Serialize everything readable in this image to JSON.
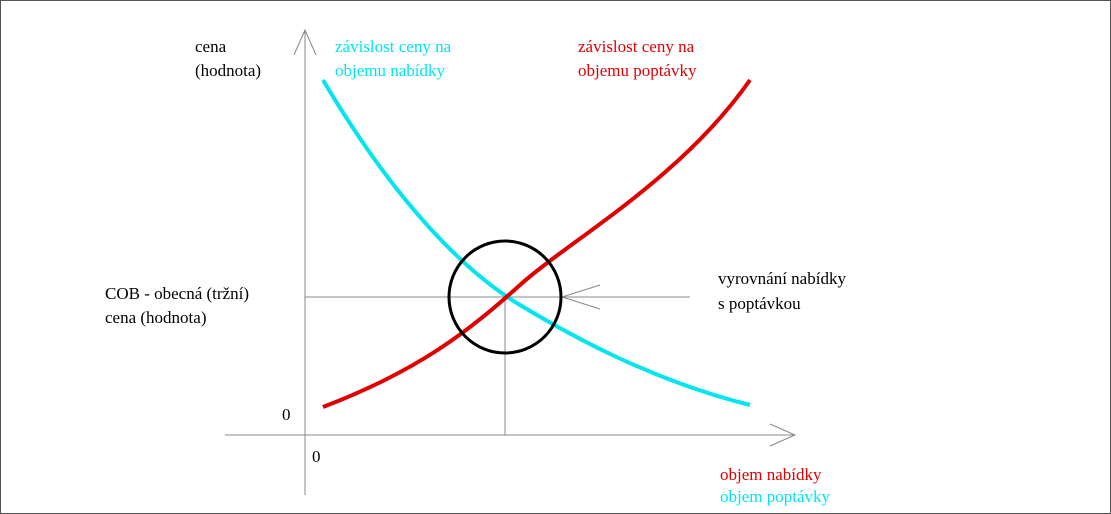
{
  "y_axis_label": [
    "cena",
    "(hodnota)"
  ],
  "supply_curve_label": [
    "závislost ceny na",
    "objemu nabídky"
  ],
  "demand_curve_label": [
    "závislost ceny na",
    "objemu poptávky"
  ],
  "equilibrium_price_label": [
    "COB - obecná (tržní)",
    "cena (hodnota)"
  ],
  "equilibrium_label": [
    "vyrovnání nabídky",
    "s poptávkou"
  ],
  "y_origin": "0",
  "x_origin": "0",
  "x_axis_label": [
    "objem nabídky",
    "objem poptávky"
  ]
}
